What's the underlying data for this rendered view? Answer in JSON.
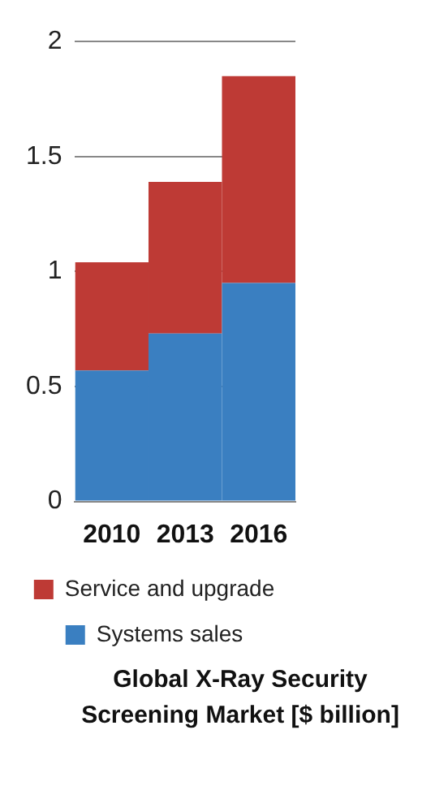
{
  "chart_data": {
    "type": "bar",
    "stacked": true,
    "title": "Global X-Ray Security Screening Market [$ billion]",
    "categories": [
      "2010",
      "2013",
      "2016"
    ],
    "series": [
      {
        "name": "Systems sales",
        "color": "#3a7fc1",
        "values": [
          0.57,
          0.73,
          0.95
        ]
      },
      {
        "name": "Service and upgrade",
        "color": "#be3a35",
        "values": [
          0.47,
          0.66,
          0.9
        ]
      }
    ],
    "ylim": [
      0,
      2
    ],
    "yticks": [
      0,
      0.5,
      1,
      1.5,
      2
    ],
    "grid": "y",
    "legend": "bottom"
  }
}
